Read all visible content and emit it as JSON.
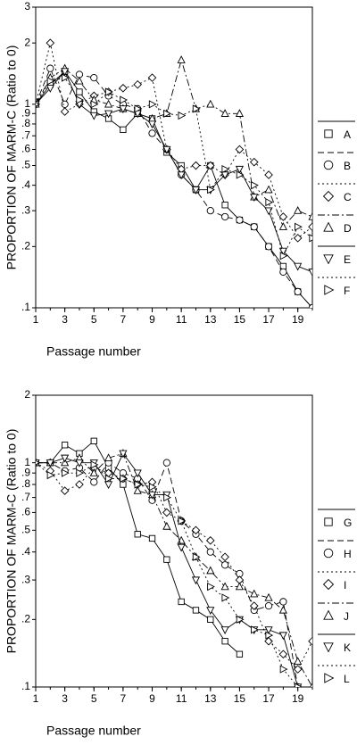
{
  "chart_data": [
    {
      "type": "line",
      "y_label": "PROPORTION OF MARM-C (Ratio to 0)",
      "x_label": "Passage number",
      "log_y": true,
      "x": [
        1,
        2,
        3,
        4,
        5,
        6,
        7,
        8,
        9,
        10,
        11,
        12,
        13,
        14,
        15,
        16,
        17,
        18,
        19,
        20
      ],
      "xlim": [
        1,
        20
      ],
      "xticks": [
        1,
        3,
        5,
        7,
        9,
        11,
        13,
        15,
        17,
        19
      ],
      "ylim": [
        0.1,
        3
      ],
      "yticks": [
        3,
        2,
        1,
        {
          "value": 0.9,
          "label": ".9"
        },
        {
          "value": 0.8,
          "label": ".8"
        },
        {
          "value": 0.7,
          "label": ".7"
        },
        {
          "value": 0.6,
          "label": ".6"
        },
        {
          "value": 0.5,
          "label": ".5"
        },
        {
          "value": 0.4,
          "label": ".4"
        },
        {
          "value": 0.3,
          "label": ".3"
        },
        {
          "value": 0.2,
          "label": ".2"
        },
        {
          "value": 0.1,
          "label": ".1"
        }
      ],
      "legend": "right",
      "series": [
        {
          "name": "A",
          "color": "#000000",
          "dash": "solid",
          "marker": "square",
          "values": [
            1,
            1.25,
            1.45,
            1.15,
            0.92,
            0.85,
            0.75,
            0.9,
            0.85,
            0.58,
            0.5,
            0.38,
            0.5,
            0.32,
            0.27,
            0.25,
            0.2,
            0.16,
            0.12,
            0.1
          ]
        },
        {
          "name": "B",
          "color": "#000000",
          "dash": "dashed",
          "marker": "circle",
          "values": [
            1,
            1.5,
            1.0,
            1.4,
            1.35,
            1.1,
            1.0,
            0.95,
            0.72,
            0.6,
            0.45,
            0.38,
            0.3,
            0.28,
            0.27,
            0.25,
            0.2,
            0.15,
            0.12,
            0.1
          ]
        },
        {
          "name": "C",
          "color": "#000000",
          "dash": "dotted",
          "marker": "diamond",
          "values": [
            1,
            2.0,
            0.92,
            1.0,
            1.1,
            1.15,
            1.2,
            1.25,
            1.35,
            0.6,
            0.48,
            0.5,
            0.5,
            0.45,
            0.6,
            0.52,
            0.45,
            0.28,
            0.22,
            0.25
          ]
        },
        {
          "name": "D",
          "color": "#000000",
          "dash": "dashdot",
          "marker": "triangle-up",
          "values": [
            1,
            1.35,
            1.5,
            1.3,
            1.05,
            1.0,
            0.95,
            0.9,
            0.85,
            0.9,
            1.65,
            0.95,
            1.0,
            0.9,
            0.9,
            0.35,
            0.38,
            0.25,
            0.3,
            0.28
          ]
        },
        {
          "name": "E",
          "color": "#000000",
          "dash": "solid",
          "marker": "triangle-down",
          "values": [
            1,
            1.2,
            1.45,
            1.0,
            0.88,
            0.9,
            0.95,
            0.9,
            0.8,
            0.6,
            0.45,
            0.38,
            0.38,
            0.45,
            0.48,
            0.35,
            0.3,
            0.19,
            0.16,
            0.15
          ]
        },
        {
          "name": "F",
          "color": "#000000",
          "dash": "dotted",
          "marker": "triangle-right",
          "values": [
            1,
            1.3,
            1.35,
            1.05,
            1.0,
            1.15,
            1.05,
            0.95,
            1.0,
            0.9,
            0.88,
            0.95,
            0.38,
            0.48,
            0.45,
            0.4,
            0.33,
            0.18,
            0.25,
            0.22
          ]
        }
      ]
    },
    {
      "type": "line",
      "y_label": "PROPORTION OF MARM-C (Ratio to 0)",
      "x_label": "Passage number",
      "log_y": true,
      "x": [
        1,
        2,
        3,
        4,
        5,
        6,
        7,
        8,
        9,
        10,
        11,
        12,
        13,
        14,
        15,
        16,
        17,
        18,
        19,
        20
      ],
      "xlim": [
        1,
        20
      ],
      "xticks": [
        1,
        3,
        5,
        7,
        9,
        11,
        13,
        15,
        17,
        19
      ],
      "ylim": [
        0.1,
        2
      ],
      "yticks": [
        2,
        1,
        {
          "value": 0.9,
          "label": ".9"
        },
        {
          "value": 0.8,
          "label": ".8"
        },
        {
          "value": 0.7,
          "label": ".7"
        },
        {
          "value": 0.6,
          "label": ".6"
        },
        {
          "value": 0.5,
          "label": ".5"
        },
        {
          "value": 0.4,
          "label": ".4"
        },
        {
          "value": 0.3,
          "label": ".3"
        },
        {
          "value": 0.2,
          "label": ".2"
        },
        {
          "value": 0.1,
          "label": ".1"
        }
      ],
      "legend": "right",
      "series": [
        {
          "name": "G",
          "color": "#000000",
          "dash": "solid",
          "marker": "square",
          "values": [
            1,
            1.0,
            1.2,
            1.1,
            1.25,
            0.95,
            0.8,
            0.48,
            0.46,
            0.37,
            0.24,
            0.22,
            0.2,
            0.16,
            0.14,
            null,
            null,
            null,
            null,
            null
          ]
        },
        {
          "name": "H",
          "color": "#000000",
          "dash": "dashed",
          "marker": "circle",
          "values": [
            1,
            1.0,
            0.92,
            0.95,
            0.82,
            1.0,
            0.9,
            0.85,
            0.68,
            1.0,
            0.55,
            0.48,
            0.4,
            0.35,
            0.32,
            0.22,
            0.23,
            0.24,
            0.1,
            null
          ]
        },
        {
          "name": "I",
          "color": "#000000",
          "dash": "dotted",
          "marker": "diamond",
          "values": [
            1,
            0.92,
            0.75,
            0.8,
            0.95,
            0.9,
            0.85,
            0.8,
            0.82,
            0.6,
            0.55,
            0.5,
            0.45,
            0.38,
            0.3,
            0.23,
            0.16,
            0.14,
            0.12,
            0.16
          ]
        },
        {
          "name": "J",
          "color": "#000000",
          "dash": "dashdot",
          "marker": "triangle-up",
          "values": [
            1,
            1.0,
            1.0,
            1.05,
            0.9,
            1.05,
            1.1,
            0.75,
            0.72,
            0.52,
            0.45,
            0.38,
            0.33,
            0.28,
            0.28,
            0.26,
            0.25,
            0.22,
            0.13,
            0.1
          ]
        },
        {
          "name": "K",
          "color": "#000000",
          "dash": "solid",
          "marker": "triangle-down",
          "values": [
            1,
            1.0,
            1.05,
            1.0,
            1.0,
            0.8,
            1.1,
            0.9,
            0.72,
            0.72,
            0.42,
            0.3,
            0.22,
            0.18,
            0.2,
            0.18,
            0.18,
            0.17,
            0.1,
            null
          ]
        },
        {
          "name": "L",
          "color": "#000000",
          "dash": "dotted",
          "marker": "triangle-right",
          "values": [
            1,
            0.88,
            0.9,
            0.9,
            0.98,
            0.85,
            0.85,
            0.8,
            0.78,
            0.7,
            0.55,
            0.38,
            0.28,
            0.25,
            0.2,
            0.18,
            0.17,
            0.12,
            0.1,
            null
          ]
        }
      ]
    }
  ]
}
